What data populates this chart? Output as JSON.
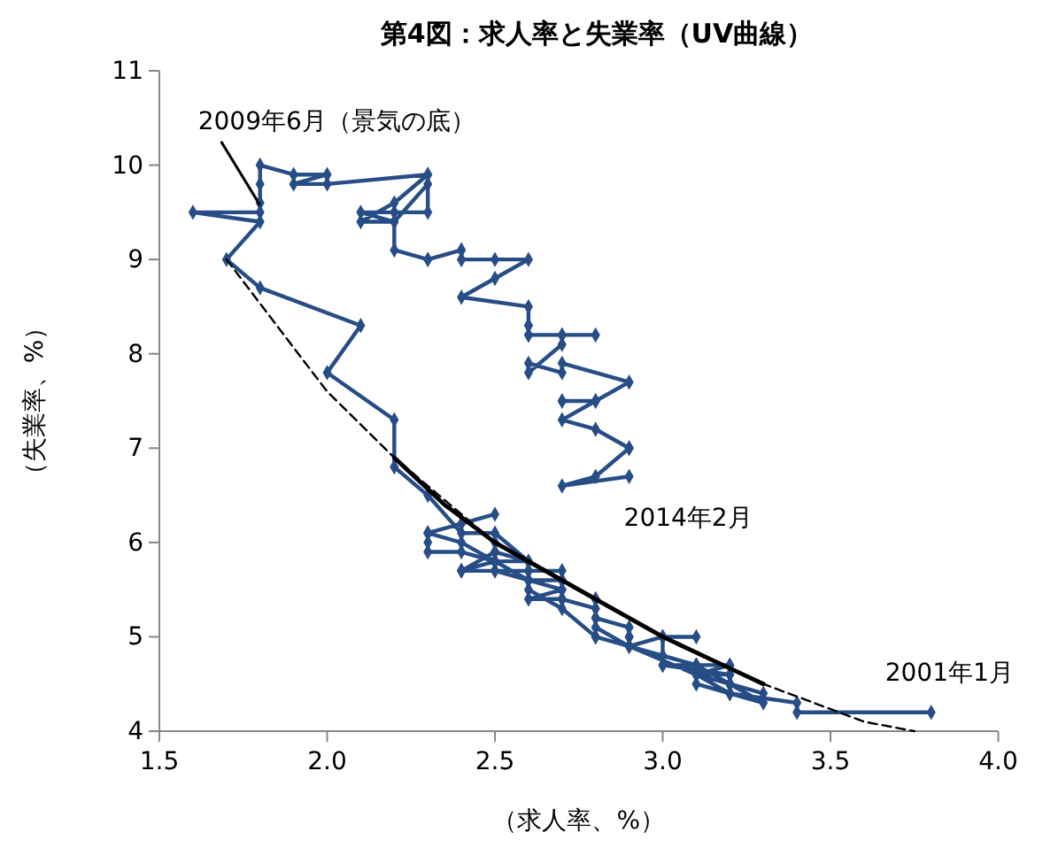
{
  "chart_data": {
    "type": "line",
    "title": "第4図：求人率と失業率（UV曲線）",
    "xlabel": "（求人率、%）",
    "ylabel": "（失業率、%）",
    "xlim": [
      1.5,
      4.0
    ],
    "xticks": [
      {
        "value": 1.5,
        "label": "1.5"
      },
      {
        "value": 2,
        "label": "2.0"
      },
      {
        "value": 2.5,
        "label": "2.5"
      },
      {
        "value": 3,
        "label": "3.0"
      },
      {
        "value": 3.5,
        "label": "3.5"
      },
      {
        "value": 4,
        "label": "4.0"
      }
    ],
    "ylim": [
      4,
      11
    ],
    "yticks": [
      4,
      5,
      6,
      7,
      8,
      9,
      10,
      11
    ],
    "grid": false,
    "series": [
      {
        "color": "#264d85",
        "marker": "diamond",
        "line_style": "solid",
        "x": [
          3.8,
          3.4,
          3.4,
          3.2,
          3.3,
          3.2,
          3.1,
          2.9,
          2.8,
          2.7,
          2.6,
          2.6,
          2.7,
          2.6,
          2.5,
          2.5,
          2.6,
          2.5,
          2.5,
          2.4,
          2.4,
          2.4,
          2.5,
          2.5,
          2.5,
          2.4,
          2.3,
          2.3,
          2.3,
          2.5,
          2.4,
          2.3,
          2.3,
          2.4,
          2.5,
          2.4,
          2.5,
          2.6,
          2.5,
          2.6,
          2.7,
          2.6,
          2.7,
          2.7,
          2.6,
          2.7,
          2.7,
          2.7,
          2.8,
          2.8,
          2.8,
          2.8,
          2.9,
          2.9,
          2.9,
          2.9,
          3.0,
          3.1,
          3.0,
          2.9,
          3.1,
          3.0,
          3.1,
          3.1,
          3.1,
          3.2,
          3.0,
          3.1,
          3.2,
          3.2,
          3.1,
          3.2,
          3.2,
          3.2,
          3.3,
          3.2,
          3.2,
          3.1,
          3.2,
          3.1,
          3.1,
          3.2,
          3.0,
          3.0,
          3.0,
          2.9,
          2.8,
          2.8,
          2.8,
          2.7,
          2.6,
          2.5,
          2.4,
          2.3,
          2.2,
          2.2,
          2.0,
          2.1,
          1.8,
          1.7,
          1.8,
          1.6,
          1.8,
          1.8,
          1.8,
          1.8,
          1.9,
          2.0,
          1.9,
          2.0,
          2.3,
          2.3,
          2.2,
          2.1,
          2.2,
          2.1,
          2.2,
          2.3,
          2.3,
          2.2,
          2.2,
          2.3,
          2.3,
          2.4,
          2.4,
          2.4,
          2.4,
          2.5,
          2.6,
          2.5,
          2.4,
          2.6,
          2.6,
          2.6,
          2.6,
          2.8,
          2.7,
          2.6,
          2.7,
          2.7,
          2.6,
          2.6,
          2.7,
          2.7,
          2.9,
          2.8,
          2.7,
          2.7,
          2.8,
          2.8,
          2.7,
          2.8,
          2.9,
          2.9,
          2.9,
          2.8,
          2.7,
          2.9
        ],
        "values": [
          4.2,
          4.2,
          4.3,
          4.4,
          4.3,
          4.5,
          4.6,
          4.9,
          5.0,
          5.3,
          5.5,
          5.7,
          5.7,
          5.7,
          5.7,
          5.9,
          5.8,
          5.8,
          5.8,
          5.7,
          5.7,
          5.7,
          5.9,
          6.0,
          5.8,
          5.9,
          5.9,
          6.0,
          6.1,
          6.3,
          6.2,
          6.1,
          6.1,
          6.0,
          5.8,
          5.7,
          5.7,
          5.6,
          5.8,
          5.6,
          5.6,
          5.6,
          5.5,
          5.4,
          5.4,
          5.5,
          5.4,
          5.4,
          5.3,
          5.4,
          5.2,
          5.2,
          5.1,
          5.0,
          5.0,
          4.9,
          5.0,
          5.0,
          5.0,
          4.9,
          4.7,
          4.8,
          4.7,
          4.7,
          4.6,
          4.6,
          4.7,
          4.7,
          4.5,
          4.4,
          4.5,
          4.4,
          4.6,
          4.5,
          4.4,
          4.5,
          4.4,
          4.6,
          4.7,
          4.6,
          4.7,
          4.7,
          4.7,
          5.0,
          5.0,
          4.9,
          5.1,
          5.0,
          5.4,
          5.6,
          5.8,
          6.1,
          6.1,
          6.5,
          6.8,
          7.3,
          7.8,
          8.3,
          8.7,
          9.0,
          9.4,
          9.5,
          9.5,
          9.6,
          9.8,
          10.0,
          9.9,
          9.9,
          9.8,
          9.8,
          9.9,
          9.9,
          9.6,
          9.4,
          9.4,
          9.5,
          9.5,
          9.5,
          9.8,
          9.4,
          9.1,
          9.0,
          9.0,
          9.1,
          9.0,
          9.1,
          9.0,
          9.0,
          9.0,
          8.8,
          8.6,
          8.5,
          8.3,
          8.3,
          8.2,
          8.2,
          8.2,
          8.2,
          8.2,
          8.1,
          7.8,
          7.9,
          7.8,
          7.9,
          7.7,
          7.5,
          7.5,
          7.5,
          7.5,
          7.5,
          7.3,
          7.2,
          7.0,
          7.0,
          7.0,
          6.7,
          6.6,
          6.7
        ]
      },
      {
        "color": "#000000",
        "marker": "none",
        "line_style": "dashed",
        "x": [
          1.7,
          2.0,
          2.2,
          2.5,
          2.8,
          3.0,
          3.3,
          3.6,
          3.75
        ],
        "values": [
          9.0,
          7.6,
          6.9,
          6.0,
          5.4,
          5.0,
          4.5,
          4.1,
          4.0
        ]
      },
      {
        "color": "#000000",
        "marker": "none",
        "line_style": "solid",
        "x": [
          2.2,
          2.35,
          2.5,
          2.65,
          2.8,
          3.0,
          3.15,
          3.3
        ],
        "values": [
          6.9,
          6.4,
          6.0,
          5.7,
          5.4,
          5.0,
          4.75,
          4.5
        ]
      }
    ],
    "annotations": [
      {
        "text": "2009年6月（景気の底）",
        "x": 1.8,
        "y": 9.5
      },
      {
        "text": "2014年2月",
        "x": 2.9,
        "y": 6.7
      },
      {
        "text": "2001年1月",
        "x": 3.8,
        "y": 4.2
      }
    ]
  }
}
